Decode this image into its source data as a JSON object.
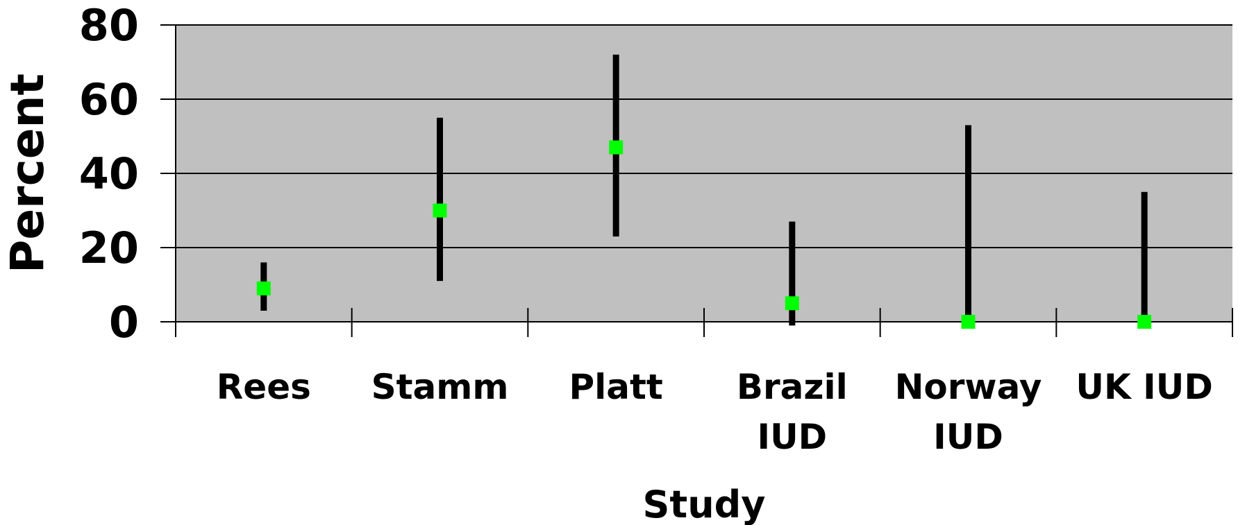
{
  "chart_data": {
    "type": "scatter",
    "title": "",
    "xlabel": "Study",
    "ylabel": "Percent",
    "ylim": [
      0,
      80
    ],
    "yticks": [
      "0",
      "20",
      "40",
      "60",
      "80"
    ],
    "grid": true,
    "plot_background": "#c0c0c0",
    "marker_color": "#00ff00",
    "errorbar_color": "#000000",
    "categories": [
      {
        "label": [
          "Rees"
        ],
        "value": 9,
        "low": 3,
        "high": 16
      },
      {
        "label": [
          "Stamm"
        ],
        "value": 30,
        "low": 11,
        "high": 55
      },
      {
        "label": [
          "Platt"
        ],
        "value": 47,
        "low": 23,
        "high": 72
      },
      {
        "label": [
          "Brazil",
          "IUD"
        ],
        "value": 5,
        "low": -1,
        "high": 27
      },
      {
        "label": [
          "Norway",
          "IUD"
        ],
        "value": 0,
        "low": 0,
        "high": 53
      },
      {
        "label": [
          "UK IUD"
        ],
        "value": 0,
        "low": 0,
        "high": 35
      }
    ]
  }
}
